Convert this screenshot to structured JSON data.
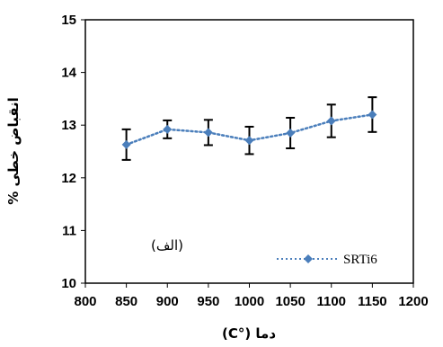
{
  "chart_data": {
    "type": "line",
    "xlabel": "دما (°C)",
    "ylabel": "انقباض خطی %",
    "xlim": [
      800,
      1200
    ],
    "ylim": [
      10,
      15
    ],
    "xticks": [
      800,
      850,
      900,
      950,
      1000,
      1050,
      1100,
      1150,
      1200
    ],
    "yticks": [
      10,
      11,
      12,
      13,
      14,
      15
    ],
    "grid": false,
    "legend_position": "bottom-right",
    "annotation": "(الف)",
    "series": [
      {
        "name": "SRTi6",
        "color": "#4a7ebb",
        "x": [
          850,
          900,
          950,
          1000,
          1050,
          1100,
          1150
        ],
        "y": [
          12.63,
          12.92,
          12.86,
          12.71,
          12.85,
          13.08,
          13.2
        ],
        "error": [
          0.29,
          0.17,
          0.24,
          0.26,
          0.29,
          0.31,
          0.33
        ]
      }
    ]
  }
}
